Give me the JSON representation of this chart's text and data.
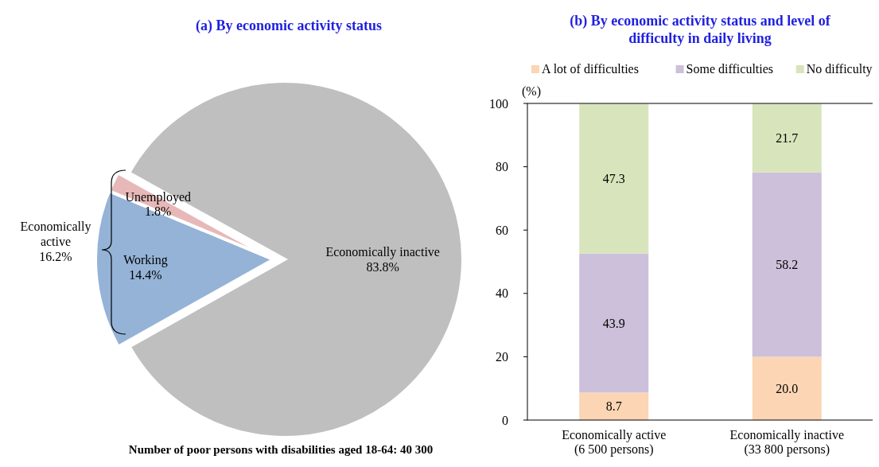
{
  "chart_data": [
    {
      "type": "pie",
      "title": "(a) By economic activity status",
      "categories": [
        "Working",
        "Unemployed",
        "Economically inactive"
      ],
      "values": [
        14.4,
        1.8,
        83.8
      ],
      "colors": [
        "#95b3d7",
        "#e6b9b8",
        "#bfbfbf"
      ],
      "value_labels": [
        "14.4%",
        "1.8%",
        "83.8%"
      ],
      "annotations": [
        "Economically active 16.2%",
        "Number of poor persons with disabilities aged 18-64: 40 300"
      ]
    },
    {
      "type": "bar",
      "title": "(b) By economic activity status and level of difficulty in daily living",
      "categories": [
        "Economically active (6 500 persons)",
        "Economically inactive (33 800 persons)"
      ],
      "ylabel": "(%)",
      "stacked": true,
      "ylim": [
        0,
        100
      ],
      "yticks": [
        0,
        20,
        40,
        60,
        80,
        100
      ],
      "legend": "top",
      "series": [
        {
          "name": "A lot of difficulties",
          "color": "#fcd5b4",
          "values": [
            8.7,
            20.0
          ],
          "value_labels": [
            "8.7",
            "20.0"
          ]
        },
        {
          "name": "Some difficulties",
          "color": "#ccc0da",
          "values": [
            43.9,
            58.2
          ],
          "value_labels": [
            "43.9",
            "58.2"
          ]
        },
        {
          "name": "No difficulty",
          "color": "#d8e4bc",
          "values": [
            47.3,
            21.7
          ],
          "value_labels": [
            "47.3",
            "21.7"
          ]
        }
      ]
    }
  ]
}
